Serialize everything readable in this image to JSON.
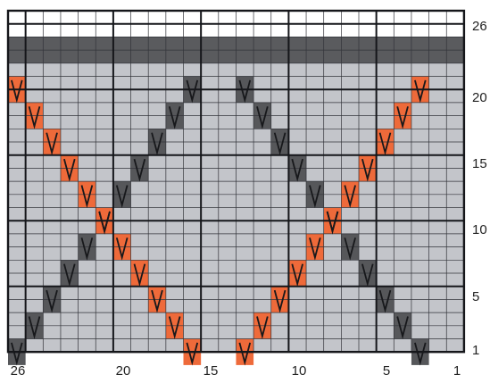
{
  "chart_data": {
    "type": "table",
    "grid": {
      "columns": 26,
      "rows": 26
    },
    "column_labels": [
      "26",
      "20",
      "15",
      "10",
      "5",
      "1"
    ],
    "row_labels": [
      "26",
      "20",
      "15",
      "10",
      "5",
      "1"
    ],
    "row_bands": [
      {
        "rows": [
          25,
          26
        ],
        "fill": "white"
      },
      {
        "rows": [
          23,
          24
        ],
        "fill": "dark-gray"
      },
      {
        "rows": [
          1,
          22
        ],
        "fill": "light-gray"
      }
    ],
    "symbols": [
      {
        "symbol": "V",
        "color": "dark",
        "stitches": [
          {
            "col": 26,
            "row": 1
          },
          {
            "col": 25,
            "row": 3
          },
          {
            "col": 24,
            "row": 5
          },
          {
            "col": 23,
            "row": 7
          },
          {
            "col": 22,
            "row": 9
          },
          {
            "col": 21,
            "row": 11
          },
          {
            "col": 20,
            "row": 13
          },
          {
            "col": 19,
            "row": 15
          },
          {
            "col": 18,
            "row": 17
          },
          {
            "col": 17,
            "row": 19
          },
          {
            "col": 16,
            "row": 21
          },
          {
            "col": 13,
            "row": 21
          },
          {
            "col": 12,
            "row": 19
          },
          {
            "col": 11,
            "row": 17
          },
          {
            "col": 10,
            "row": 15
          },
          {
            "col": 9,
            "row": 13
          },
          {
            "col": 8,
            "row": 11
          },
          {
            "col": 7,
            "row": 9
          },
          {
            "col": 6,
            "row": 7
          },
          {
            "col": 5,
            "row": 5
          },
          {
            "col": 4,
            "row": 3
          },
          {
            "col": 3,
            "row": 1
          }
        ]
      },
      {
        "symbol": "V",
        "color": "orange",
        "stitches": [
          {
            "col": 26,
            "row": 21
          },
          {
            "col": 25,
            "row": 19
          },
          {
            "col": 24,
            "row": 17
          },
          {
            "col": 23,
            "row": 15
          },
          {
            "col": 22,
            "row": 13
          },
          {
            "col": 21,
            "row": 11
          },
          {
            "col": 20,
            "row": 9
          },
          {
            "col": 19,
            "row": 7
          },
          {
            "col": 18,
            "row": 5
          },
          {
            "col": 17,
            "row": 3
          },
          {
            "col": 16,
            "row": 1
          },
          {
            "col": 13,
            "row": 1
          },
          {
            "col": 12,
            "row": 3
          },
          {
            "col": 11,
            "row": 5
          },
          {
            "col": 10,
            "row": 7
          },
          {
            "col": 9,
            "row": 9
          },
          {
            "col": 8,
            "row": 11
          },
          {
            "col": 7,
            "row": 13
          },
          {
            "col": 6,
            "row": 15
          },
          {
            "col": 5,
            "row": 17
          },
          {
            "col": 4,
            "row": 19
          },
          {
            "col": 3,
            "row": 21
          }
        ]
      }
    ]
  },
  "colors": {
    "white_band": "#ffffff",
    "dark_band": "#5a5b5e",
    "light_cell": "#c3c5ca",
    "orange_cell": "#ee6a3a",
    "dark_cell": "#56575a",
    "thin_line": "#33343a",
    "major_line": "#15161a",
    "symbol_stroke": "#17181b"
  }
}
